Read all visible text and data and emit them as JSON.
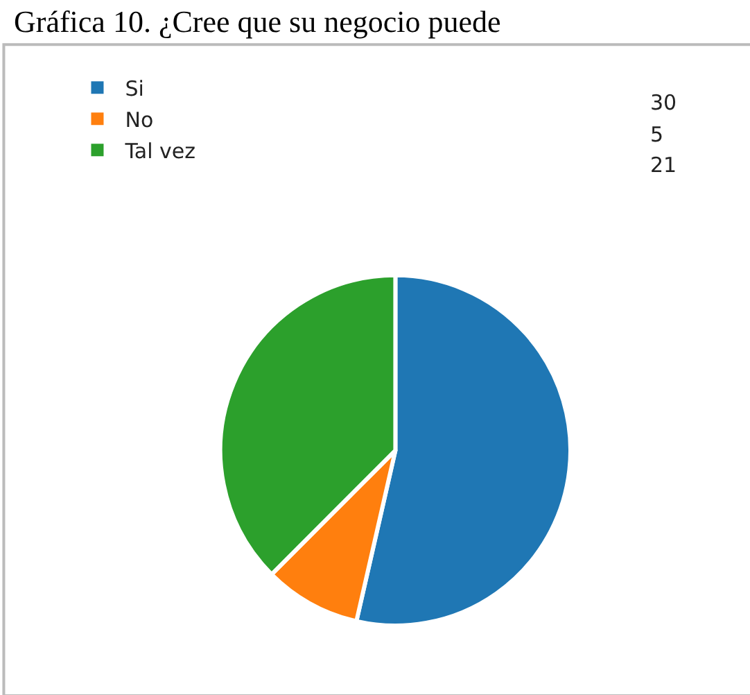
{
  "chart_data": {
    "type": "pie",
    "title": "Gráfica 10. ¿Cree que su negocio puede",
    "categories": [
      "Si",
      "No",
      "Tal vez"
    ],
    "values": [
      30,
      5,
      21
    ],
    "colors": [
      "#1f77b4",
      "#ff7f0e",
      "#2ca02c"
    ],
    "data_labels": true,
    "legend": "top left"
  }
}
